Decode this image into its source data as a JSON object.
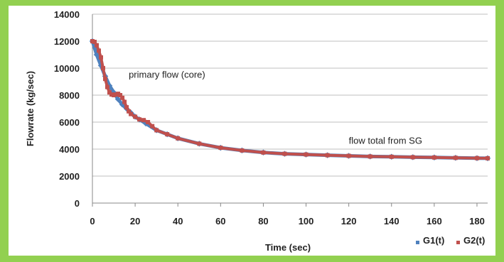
{
  "chart_data": {
    "type": "scatter",
    "title": "",
    "xlabel": "Time (sec)",
    "ylabel": "Flowrate (kg/sec)",
    "xlim": [
      0,
      185
    ],
    "ylim": [
      0,
      14000
    ],
    "xticks": [
      0,
      20,
      40,
      60,
      80,
      100,
      120,
      140,
      160,
      180
    ],
    "yticks": [
      0,
      2000,
      4000,
      6000,
      8000,
      10000,
      12000,
      14000
    ],
    "grid": true,
    "legend_position": "bottom-right",
    "background_color": "#92d050",
    "plot_color": "#ffffff",
    "annotations": [
      {
        "text": "primary flow (core)",
        "x": 17,
        "y": 9300
      },
      {
        "text": "flow total from SG",
        "x": 120,
        "y": 4400
      }
    ],
    "series": [
      {
        "name": "G1(t)",
        "color": "#4f81bd",
        "marker": "diamond",
        "x": [
          0,
          2,
          4,
          6,
          8,
          10,
          12,
          14,
          16,
          18,
          20,
          22,
          25,
          30,
          35,
          40,
          50,
          60,
          70,
          80,
          90,
          100,
          110,
          120,
          130,
          140,
          150,
          160,
          170,
          180,
          185
        ],
        "y": [
          12000,
          11000,
          10200,
          9400,
          8700,
          8200,
          7700,
          7300,
          7000,
          6700,
          6400,
          6200,
          5900,
          5400,
          5100,
          4800,
          4400,
          4100,
          3900,
          3750,
          3650,
          3600,
          3550,
          3500,
          3450,
          3430,
          3400,
          3380,
          3350,
          3330,
          3320
        ]
      },
      {
        "name": "G2(t)",
        "color": "#c0504d",
        "marker": "square",
        "x": [
          0,
          1,
          2,
          3,
          4,
          5,
          6,
          7,
          8,
          9,
          10,
          11,
          12,
          13,
          14,
          15,
          16,
          17,
          18,
          20,
          22,
          24,
          26,
          28,
          30,
          35,
          40,
          50,
          60,
          70,
          80,
          90,
          100,
          110,
          120,
          130,
          140,
          150,
          160,
          170,
          180,
          185
        ],
        "y": [
          12000,
          11950,
          11700,
          11300,
          10800,
          10000,
          9200,
          8600,
          8200,
          8050,
          8000,
          8050,
          8100,
          8000,
          7800,
          7500,
          7100,
          6800,
          6600,
          6400,
          6200,
          6150,
          6000,
          5700,
          5400,
          5100,
          4800,
          4400,
          4100,
          3900,
          3750,
          3650,
          3600,
          3550,
          3500,
          3450,
          3430,
          3400,
          3380,
          3350,
          3330,
          3320
        ]
      }
    ]
  }
}
